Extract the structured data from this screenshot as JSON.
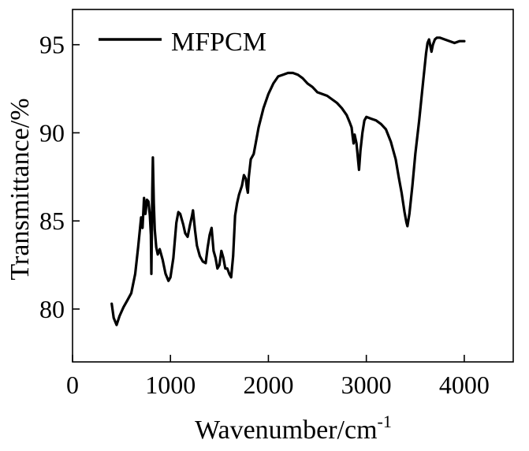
{
  "chart_data": {
    "type": "line",
    "xlabel": "Wavenumber/cm",
    "xlabel_superscript": "-1",
    "ylabel": "Transmittance/%",
    "xlim": [
      0,
      4500
    ],
    "ylim": [
      77,
      97
    ],
    "xticks": [
      0,
      1000,
      2000,
      3000,
      4000
    ],
    "yticks": [
      80,
      85,
      90,
      95
    ],
    "grid": false,
    "legend_position": "top-left",
    "series": [
      {
        "name": "MFPCM",
        "color": "#000000",
        "points": [
          [
            400,
            80.3
          ],
          [
            420,
            79.5
          ],
          [
            450,
            79.1
          ],
          [
            480,
            79.6
          ],
          [
            520,
            80.1
          ],
          [
            560,
            80.5
          ],
          [
            600,
            80.9
          ],
          [
            640,
            82.0
          ],
          [
            670,
            83.5
          ],
          [
            700,
            85.2
          ],
          [
            715,
            84.6
          ],
          [
            730,
            86.3
          ],
          [
            745,
            85.4
          ],
          [
            760,
            86.2
          ],
          [
            775,
            86.1
          ],
          [
            790,
            85.3
          ],
          [
            800,
            84.2
          ],
          [
            805,
            82.0
          ],
          [
            815,
            86.8
          ],
          [
            820,
            88.6
          ],
          [
            830,
            86.0
          ],
          [
            840,
            84.5
          ],
          [
            855,
            83.5
          ],
          [
            870,
            83.1
          ],
          [
            890,
            83.4
          ],
          [
            920,
            82.8
          ],
          [
            950,
            82.0
          ],
          [
            980,
            81.6
          ],
          [
            1000,
            81.8
          ],
          [
            1030,
            82.9
          ],
          [
            1060,
            84.9
          ],
          [
            1080,
            85.5
          ],
          [
            1100,
            85.4
          ],
          [
            1130,
            84.8
          ],
          [
            1150,
            84.3
          ],
          [
            1175,
            84.1
          ],
          [
            1200,
            84.8
          ],
          [
            1220,
            85.3
          ],
          [
            1230,
            85.6
          ],
          [
            1250,
            84.5
          ],
          [
            1270,
            83.6
          ],
          [
            1300,
            83.0
          ],
          [
            1330,
            82.7
          ],
          [
            1360,
            82.6
          ],
          [
            1380,
            83.5
          ],
          [
            1400,
            84.2
          ],
          [
            1420,
            84.6
          ],
          [
            1440,
            83.3
          ],
          [
            1460,
            82.9
          ],
          [
            1480,
            82.3
          ],
          [
            1500,
            82.5
          ],
          [
            1520,
            83.3
          ],
          [
            1540,
            82.9
          ],
          [
            1560,
            82.3
          ],
          [
            1580,
            82.3
          ],
          [
            1600,
            82.0
          ],
          [
            1620,
            81.8
          ],
          [
            1640,
            83.0
          ],
          [
            1660,
            85.3
          ],
          [
            1680,
            86.0
          ],
          [
            1700,
            86.5
          ],
          [
            1730,
            87.0
          ],
          [
            1750,
            87.6
          ],
          [
            1770,
            87.4
          ],
          [
            1780,
            86.9
          ],
          [
            1790,
            86.6
          ],
          [
            1800,
            87.5
          ],
          [
            1820,
            88.5
          ],
          [
            1850,
            88.8
          ],
          [
            1870,
            89.4
          ],
          [
            1900,
            90.3
          ],
          [
            1950,
            91.4
          ],
          [
            2000,
            92.2
          ],
          [
            2050,
            92.8
          ],
          [
            2100,
            93.2
          ],
          [
            2150,
            93.3
          ],
          [
            2200,
            93.4
          ],
          [
            2250,
            93.4
          ],
          [
            2300,
            93.3
          ],
          [
            2350,
            93.1
          ],
          [
            2400,
            92.8
          ],
          [
            2450,
            92.6
          ],
          [
            2500,
            92.3
          ],
          [
            2550,
            92.2
          ],
          [
            2600,
            92.1
          ],
          [
            2650,
            91.9
          ],
          [
            2700,
            91.7
          ],
          [
            2750,
            91.4
          ],
          [
            2800,
            91.0
          ],
          [
            2830,
            90.6
          ],
          [
            2850,
            90.3
          ],
          [
            2860,
            89.8
          ],
          [
            2870,
            89.4
          ],
          [
            2880,
            89.9
          ],
          [
            2900,
            89.4
          ],
          [
            2915,
            88.5
          ],
          [
            2925,
            87.9
          ],
          [
            2940,
            89.0
          ],
          [
            2960,
            90.0
          ],
          [
            2980,
            90.7
          ],
          [
            3000,
            90.9
          ],
          [
            3050,
            90.8
          ],
          [
            3100,
            90.7
          ],
          [
            3150,
            90.5
          ],
          [
            3200,
            90.2
          ],
          [
            3250,
            89.5
          ],
          [
            3300,
            88.5
          ],
          [
            3330,
            87.5
          ],
          [
            3360,
            86.6
          ],
          [
            3390,
            85.5
          ],
          [
            3410,
            84.9
          ],
          [
            3420,
            84.7
          ],
          [
            3440,
            85.4
          ],
          [
            3470,
            87.0
          ],
          [
            3500,
            88.8
          ],
          [
            3540,
            90.7
          ],
          [
            3580,
            92.9
          ],
          [
            3610,
            94.5
          ],
          [
            3625,
            95.1
          ],
          [
            3640,
            95.3
          ],
          [
            3655,
            94.9
          ],
          [
            3665,
            94.6
          ],
          [
            3680,
            95.0
          ],
          [
            3700,
            95.3
          ],
          [
            3720,
            95.4
          ],
          [
            3750,
            95.4
          ],
          [
            3800,
            95.3
          ],
          [
            3850,
            95.2
          ],
          [
            3900,
            95.1
          ],
          [
            3950,
            95.2
          ],
          [
            4000,
            95.2
          ]
        ]
      }
    ]
  }
}
